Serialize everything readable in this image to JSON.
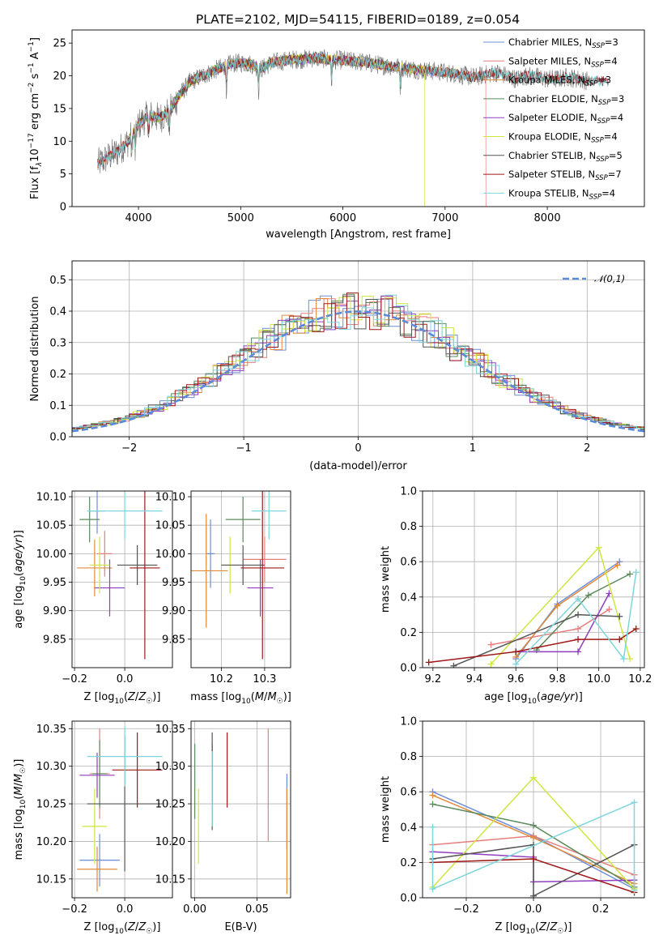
{
  "title": "PLATE=2102, MJD=54115, FIBERID=0189, z=0.054",
  "colors": {
    "chabrier_miles": "#6c8ed8",
    "salpeter_miles": "#e67e7e",
    "kroupa_miles": "#e08a3c",
    "chabrier_elodie": "#5b8a5b",
    "salpeter_elodie": "#8e3fbf",
    "kroupa_elodie": "#cfe63f",
    "chabrier_stelib": "#555555",
    "salpeter_stelib": "#a01818",
    "kroupa_stelib": "#7dd6dc"
  },
  "chart_data": [
    {
      "id": "spectrum",
      "type": "line",
      "xlabel": "wavelength [Angstrom, rest frame]",
      "ylabel": "Flux [f_λ 10^-17 erg cm^-2 s^-1 A^-1]",
      "xlim": [
        3350,
        8950
      ],
      "ylim": [
        0,
        27
      ],
      "xticks": [
        4000,
        5000,
        6000,
        7000,
        8000
      ],
      "yticks": [
        0,
        5,
        10,
        15,
        20,
        25
      ],
      "legend_position": "upper-right",
      "legend": [
        {
          "label": "Chabrier MILES, N",
          "sub": "SSP",
          "val": "=3",
          "color": "#6c8ed8"
        },
        {
          "label": "Salpeter MILES, N",
          "sub": "SSP",
          "val": "=4",
          "color": "#e67e7e"
        },
        {
          "label": "Kroupa MILES, N",
          "sub": "SSP",
          "val": "=3",
          "color": "#e08a3c"
        },
        {
          "label": "Chabrier ELODIE, N",
          "sub": "SSP",
          "val": "=3",
          "color": "#5b8a5b"
        },
        {
          "label": "Salpeter ELODIE, N",
          "sub": "SSP",
          "val": "=4",
          "color": "#8e3fbf"
        },
        {
          "label": "Kroupa ELODIE, N",
          "sub": "SSP",
          "val": "=4",
          "color": "#cfe63f"
        },
        {
          "label": "Chabrier STELIB, N",
          "sub": "SSP",
          "val": "=5",
          "color": "#555555"
        },
        {
          "label": "Salpeter STELIB, N",
          "sub": "SSP",
          "val": "=7",
          "color": "#a01818"
        },
        {
          "label": "Kroupa STELIB, N",
          "sub": "SSP",
          "val": "=4",
          "color": "#7dd6dc"
        }
      ],
      "continuum": [
        [
          3600,
          6.5
        ],
        [
          3700,
          7.5
        ],
        [
          3800,
          8.5
        ],
        [
          3900,
          10
        ],
        [
          4000,
          12.5
        ],
        [
          4100,
          14
        ],
        [
          4200,
          13.5
        ],
        [
          4300,
          14.5
        ],
        [
          4400,
          17
        ],
        [
          4500,
          19
        ],
        [
          4600,
          19.8
        ],
        [
          4700,
          20.5
        ],
        [
          4800,
          21.2
        ],
        [
          4900,
          21.8
        ],
        [
          5000,
          22
        ],
        [
          5100,
          21.8
        ],
        [
          5200,
          21
        ],
        [
          5300,
          22
        ],
        [
          5400,
          22.2
        ],
        [
          5500,
          22.5
        ],
        [
          5600,
          22.5
        ],
        [
          5700,
          22.7
        ],
        [
          5800,
          22.6
        ],
        [
          5900,
          22.4
        ],
        [
          6000,
          22.4
        ],
        [
          6100,
          22.2
        ],
        [
          6200,
          22.1
        ],
        [
          6300,
          21.8
        ],
        [
          6400,
          21.6
        ],
        [
          6500,
          21.4
        ],
        [
          6600,
          21.2
        ],
        [
          6700,
          21
        ],
        [
          6800,
          20.8
        ],
        [
          6900,
          20.7
        ],
        [
          7000,
          20.5
        ],
        [
          7100,
          20.3
        ],
        [
          7200,
          20
        ],
        [
          7300,
          19.8
        ],
        [
          7400,
          20.2
        ],
        [
          7500,
          20.5
        ],
        [
          7600,
          20
        ],
        [
          7700,
          19.5
        ],
        [
          7800,
          20
        ],
        [
          7900,
          19.8
        ],
        [
          8000,
          19.5
        ],
        [
          8100,
          19.5
        ],
        [
          8200,
          19.8
        ],
        [
          8300,
          19.5
        ],
        [
          8400,
          19.2
        ]
      ]
    },
    {
      "id": "residuals",
      "type": "step-histogram",
      "xlabel": "(data-model)/error",
      "ylabel": "Normed distribution",
      "xlim": [
        -2.5,
        2.5
      ],
      "ylim": [
        0,
        0.56
      ],
      "xticks": [
        -2,
        -1,
        0,
        1,
        2
      ],
      "yticks": [
        0.0,
        0.1,
        0.2,
        0.3,
        0.4,
        0.5
      ],
      "reference_label": "𝒩(0,1)",
      "reference_color": "#5b8bd8",
      "legend_position": "upper-right"
    },
    {
      "id": "age-vs-Z",
      "type": "scatter-errorbar",
      "xlabel": "Z [log10(Z/Z☉)]",
      "ylabel": "age [log10(age/yr)]",
      "xlim": [
        -0.21,
        0.19
      ],
      "ylim": [
        9.8,
        10.11
      ],
      "xticks": [
        -0.2,
        0.0
      ],
      "yticks": [
        9.85,
        9.9,
        9.95,
        10.0,
        10.05,
        10.1
      ],
      "points": [
        {
          "x": -0.11,
          "y": 10.075,
          "xe": 0.03,
          "ye": 0.04,
          "c": "chabrier_miles"
        },
        {
          "x": -0.08,
          "y": 10.0,
          "xe": 0.03,
          "ye": 0.04,
          "c": "salpeter_miles"
        },
        {
          "x": -0.12,
          "y": 9.975,
          "xe": 0.07,
          "ye": 0.05,
          "c": "kroupa_miles"
        },
        {
          "x": -0.14,
          "y": 10.06,
          "xe": 0.04,
          "ye": 0.04,
          "c": "chabrier_elodie"
        },
        {
          "x": -0.06,
          "y": 9.94,
          "xe": 0.06,
          "ye": 0.05,
          "c": "salpeter_elodie"
        },
        {
          "x": -0.1,
          "y": 9.98,
          "xe": 0.04,
          "ye": 0.05,
          "c": "kroupa_elodie"
        },
        {
          "x": 0.05,
          "y": 9.98,
          "xe": 0.08,
          "ye": 0.035,
          "c": "chabrier_stelib"
        },
        {
          "x": 0.08,
          "y": 9.975,
          "xe": 0.06,
          "ye": 0.16,
          "c": "salpeter_stelib"
        },
        {
          "x": 0.0,
          "y": 10.075,
          "xe": 0.15,
          "ye": 0.05,
          "c": "kroupa_stelib"
        }
      ]
    },
    {
      "id": "age-vs-mass",
      "type": "scatter-errorbar",
      "xlabel": "mass [log10(M/M☉)]",
      "ylabel": "",
      "xlim": [
        10.13,
        10.36
      ],
      "ylim": [
        9.8,
        10.11
      ],
      "xticks": [
        10.2,
        10.3
      ],
      "yticks": [
        9.85,
        9.9,
        9.95,
        10.0,
        10.05,
        10.1
      ],
      "points": [
        {
          "x": 10.175,
          "y": 10.0,
          "xe": 0.01,
          "ye": 0.06,
          "c": "chabrier_miles"
        },
        {
          "x": 10.3,
          "y": 9.99,
          "xe": 0.05,
          "ye": 0.04,
          "c": "salpeter_miles"
        },
        {
          "x": 10.165,
          "y": 9.97,
          "xe": 0.05,
          "ye": 0.1,
          "c": "kroupa_miles"
        },
        {
          "x": 10.25,
          "y": 10.06,
          "xe": 0.04,
          "ye": 0.04,
          "c": "chabrier_elodie"
        },
        {
          "x": 10.29,
          "y": 9.94,
          "xe": 0.03,
          "ye": 0.05,
          "c": "salpeter_elodie"
        },
        {
          "x": 10.22,
          "y": 9.98,
          "xe": 0.02,
          "ye": 0.05,
          "c": "kroupa_elodie"
        },
        {
          "x": 10.25,
          "y": 9.98,
          "xe": 0.05,
          "ye": 0.035,
          "c": "chabrier_stelib"
        },
        {
          "x": 10.295,
          "y": 9.975,
          "xe": 0.05,
          "ye": 0.16,
          "c": "salpeter_stelib"
        },
        {
          "x": 10.31,
          "y": 10.075,
          "xe": 0.04,
          "ye": 0.05,
          "c": "kroupa_stelib"
        }
      ]
    },
    {
      "id": "weight-vs-age",
      "type": "line",
      "xlabel": "age [log10(age/yr)]",
      "ylabel": "mass weight",
      "xlim": [
        9.15,
        10.22
      ],
      "ylim": [
        0,
        1.0
      ],
      "xticks": [
        9.2,
        9.4,
        9.6,
        9.8,
        10.0,
        10.2
      ],
      "yticks": [
        0.0,
        0.2,
        0.4,
        0.6,
        0.8,
        1.0
      ],
      "series": [
        {
          "c": "chabrier_miles",
          "x": [
            9.6,
            9.8,
            10.1
          ],
          "y": [
            0.05,
            0.36,
            0.6
          ]
        },
        {
          "c": "salpeter_miles",
          "x": [
            9.48,
            9.9,
            10.05
          ],
          "y": [
            0.13,
            0.22,
            0.33
          ]
        },
        {
          "c": "kroupa_miles",
          "x": [
            9.6,
            9.8,
            10.09
          ],
          "y": [
            0.06,
            0.35,
            0.58
          ]
        },
        {
          "c": "chabrier_elodie",
          "x": [
            9.7,
            9.95,
            10.15
          ],
          "y": [
            0.1,
            0.41,
            0.53
          ]
        },
        {
          "c": "salpeter_elodie",
          "x": [
            9.6,
            9.9,
            10.05
          ],
          "y": [
            0.09,
            0.09,
            0.42
          ]
        },
        {
          "c": "kroupa_elodie",
          "x": [
            9.48,
            10.0,
            10.15
          ],
          "y": [
            0.02,
            0.68,
            0.05
          ]
        },
        {
          "c": "chabrier_stelib",
          "x": [
            9.3,
            9.9,
            10.1
          ],
          "y": [
            0.01,
            0.3,
            0.29
          ]
        },
        {
          "c": "salpeter_stelib",
          "x": [
            9.18,
            9.6,
            9.9,
            10.1,
            10.18
          ],
          "y": [
            0.03,
            0.09,
            0.16,
            0.16,
            0.22
          ]
        },
        {
          "c": "kroupa_stelib",
          "x": [
            9.6,
            9.9,
            10.12,
            10.18
          ],
          "y": [
            0.02,
            0.39,
            0.05,
            0.54
          ]
        }
      ]
    },
    {
      "id": "mass-vs-Z",
      "type": "scatter-errorbar",
      "xlabel": "Z [log10(Z/Z☉)]",
      "ylabel": "mass [log10(M/M☉)]",
      "xlim": [
        -0.21,
        0.19
      ],
      "ylim": [
        10.125,
        10.36
      ],
      "xticks": [
        -0.2,
        0.0
      ],
      "yticks": [
        10.15,
        10.2,
        10.25,
        10.3,
        10.35
      ],
      "points": [
        {
          "x": -0.1,
          "y": 10.175,
          "xe": 0.08,
          "ye": 0.035,
          "c": "chabrier_miles"
        },
        {
          "x": -0.1,
          "y": 10.29,
          "xe": 0.04,
          "ye": 0.06,
          "c": "salpeter_miles"
        },
        {
          "x": -0.11,
          "y": 10.163,
          "xe": 0.08,
          "ye": 0.03,
          "c": "kroupa_miles"
        },
        {
          "x": -0.1,
          "y": 10.29,
          "xe": 0.03,
          "ye": 0.045,
          "c": "chabrier_elodie"
        },
        {
          "x": -0.11,
          "y": 10.288,
          "xe": 0.07,
          "ye": 0.03,
          "c": "salpeter_elodie"
        },
        {
          "x": -0.12,
          "y": 10.22,
          "xe": 0.05,
          "ye": 0.05,
          "c": "kroupa_elodie"
        },
        {
          "x": 0.0,
          "y": 10.25,
          "xe": 0.15,
          "ye": 0.09,
          "c": "chabrier_stelib"
        },
        {
          "x": 0.05,
          "y": 10.295,
          "xe": 0.1,
          "ye": 0.05,
          "c": "salpeter_stelib"
        },
        {
          "x": 0.0,
          "y": 10.313,
          "xe": 0.15,
          "ye": 0.04,
          "c": "kroupa_stelib"
        }
      ]
    },
    {
      "id": "mass-vs-ebv",
      "type": "scatter-errorbar",
      "xlabel": "E(B-V)",
      "ylabel": "",
      "xlim": [
        -0.003,
        0.077
      ],
      "ylim": [
        10.125,
        10.36
      ],
      "xticks": [
        0.0,
        0.05
      ],
      "yticks": [
        10.15,
        10.2,
        10.25,
        10.3,
        10.35
      ],
      "points": [
        {
          "x": 0.074,
          "y": 10.24,
          "xe": 0,
          "ye": 0.05,
          "c": "chabrier_miles"
        },
        {
          "x": 0.059,
          "y": 10.275,
          "xe": 0,
          "ye": 0.075,
          "c": "salpeter_miles"
        },
        {
          "x": 0.074,
          "y": 10.2,
          "xe": 0,
          "ye": 0.07,
          "c": "kroupa_miles"
        },
        {
          "x": 0.0,
          "y": 10.28,
          "xe": 0,
          "ye": 0.05,
          "c": "chabrier_elodie"
        },
        {
          "x": 0.014,
          "y": 10.29,
          "xe": 0,
          "ye": 0.04,
          "c": "salpeter_elodie"
        },
        {
          "x": 0.003,
          "y": 10.22,
          "xe": 0,
          "ye": 0.05,
          "c": "kroupa_elodie"
        },
        {
          "x": 0.014,
          "y": 10.28,
          "xe": 0,
          "ye": 0.065,
          "c": "chabrier_stelib"
        },
        {
          "x": 0.026,
          "y": 10.295,
          "xe": 0,
          "ye": 0.05,
          "c": "salpeter_stelib"
        },
        {
          "x": 0.014,
          "y": 10.27,
          "xe": 0,
          "ye": 0.05,
          "c": "kroupa_stelib"
        }
      ]
    },
    {
      "id": "weight-vs-Z",
      "type": "line",
      "xlabel": "Z [log10(Z/Z☉)]",
      "ylabel": "mass weight",
      "xlim": [
        -0.33,
        0.33
      ],
      "ylim": [
        0,
        1.0
      ],
      "xticks": [
        -0.2,
        0.0,
        0.2
      ],
      "yticks": [
        0.0,
        0.2,
        0.4,
        0.6,
        0.8,
        1.0
      ],
      "series": [
        {
          "c": "chabrier_miles",
          "x": [
            -0.3,
            0.0,
            0.3
          ],
          "y": [
            0.6,
            0.35,
            0.05
          ]
        },
        {
          "c": "salpeter_miles",
          "x": [
            -0.3,
            0.0,
            0.3
          ],
          "y": [
            0.3,
            0.35,
            0.13
          ]
        },
        {
          "c": "kroupa_miles",
          "x": [
            -0.3,
            0.0,
            0.3
          ],
          "y": [
            0.58,
            0.34,
            0.08
          ]
        },
        {
          "c": "chabrier_elodie",
          "x": [
            -0.3,
            0.0,
            0.3
          ],
          "y": [
            0.53,
            0.41,
            0.06
          ]
        },
        {
          "c": "salpeter_elodie",
          "x": [
            -0.3,
            0.0,
            0.0,
            0.3
          ],
          "y": [
            0.26,
            0.23,
            0.09,
            0.1
          ]
        },
        {
          "c": "kroupa_elodie",
          "x": [
            -0.3,
            0.0,
            0.3
          ],
          "y": [
            0.06,
            0.68,
            0.05
          ]
        },
        {
          "c": "chabrier_stelib",
          "x": [
            -0.3,
            0.0,
            0.0,
            0.3
          ],
          "y": [
            0.22,
            0.3,
            0.01,
            0.3
          ]
        },
        {
          "c": "salpeter_stelib",
          "x": [
            -0.3,
            0.0,
            0.3
          ],
          "y": [
            0.2,
            0.22,
            0.03
          ]
        },
        {
          "c": "kroupa_stelib",
          "x": [
            -0.3,
            -0.3,
            0.3,
            0.3
          ],
          "y": [
            0.4,
            0.05,
            0.54,
            0.04
          ]
        }
      ]
    }
  ]
}
